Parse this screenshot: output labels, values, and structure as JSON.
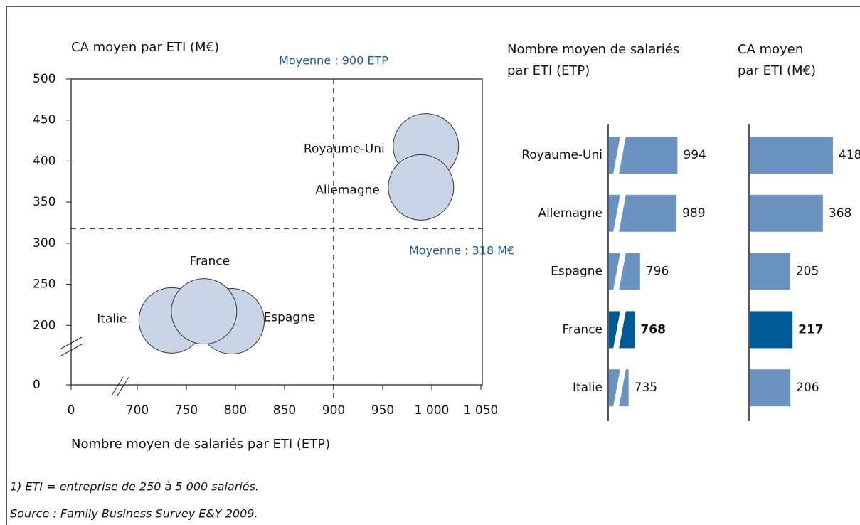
{
  "chart_data": [
    {
      "type": "bubble",
      "title": "CA moyen par ETI (M€)",
      "x_label": "Nombre moyen de salariés par ETI (ETP)",
      "categories": [
        "Royaume-Uni",
        "Allemagne",
        "France",
        "Espagne",
        "Italie"
      ],
      "x": [
        994,
        989,
        768,
        796,
        735
      ],
      "values": [
        418,
        368,
        217,
        205,
        206
      ],
      "color": "#c9d5e6",
      "xlim": [
        650,
        1050
      ],
      "xticks": [
        0,
        700,
        750,
        800,
        850,
        900,
        950,
        {
          "value": 1000,
          "label": "1 000"
        },
        {
          "value": 1050,
          "label": "1 050"
        }
      ],
      "ylim": [
        150,
        500
      ],
      "yticks": [
        0,
        200,
        250,
        300,
        350,
        400,
        450,
        500
      ],
      "axis_break": true,
      "reference_lines": [
        {
          "axis": "x",
          "value": 900,
          "label": "Moyenne : 900 ETP"
        },
        {
          "axis": "y",
          "value": 318,
          "label": "Moyenne : 318 M€"
        }
      ]
    },
    {
      "type": "hbar",
      "title": [
        "Nombre moyen de salariés",
        "par ETI (ETP)"
      ],
      "categories": [
        "Royaume-Uni",
        "Allemagne",
        "Espagne",
        "France",
        "Italie"
      ],
      "values": [
        994,
        989,
        796,
        768,
        735
      ],
      "colors": [
        "#6a93c2",
        "#6a93c2",
        "#6a93c2",
        "#005a96",
        "#6a93c2"
      ],
      "xlim": [
        627,
        1000
      ],
      "axis_break": true
    },
    {
      "type": "hbar",
      "title": [
        "CA moyen",
        "par ETI (M€)"
      ],
      "values": [
        418,
        368,
        205,
        217,
        206
      ],
      "colors": [
        "#6a93c2",
        "#6a93c2",
        "#6a93c2",
        "#005a96",
        "#6a93c2"
      ],
      "xlim": [
        0,
        418
      ]
    }
  ],
  "notes": [
    "1) ETI = entreprise de 250 à 5 000 salariés.",
    "Source : Family Business Survey E&Y 2009."
  ]
}
